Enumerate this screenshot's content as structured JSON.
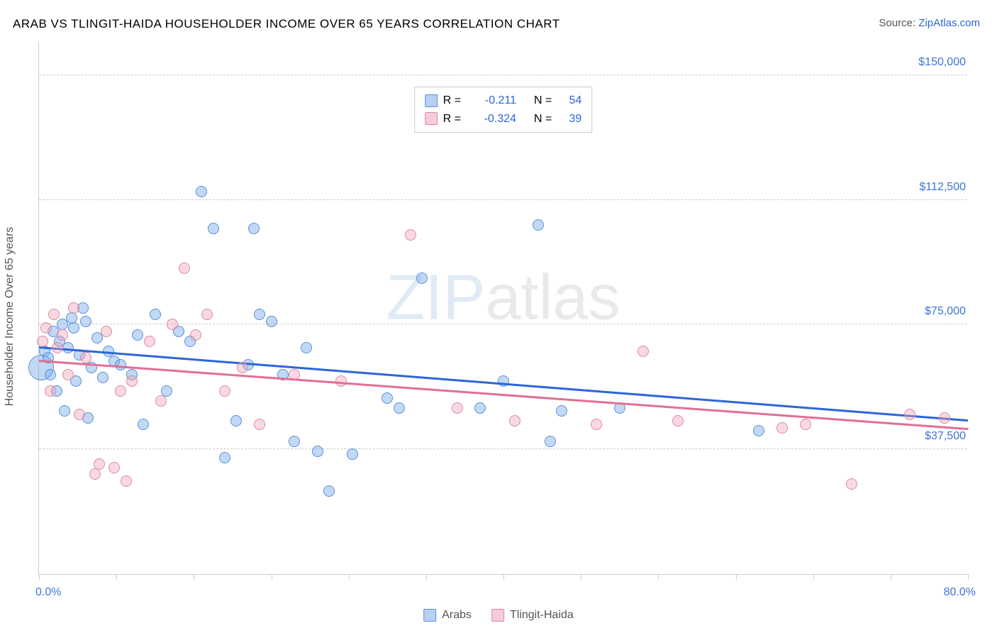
{
  "title": "ARAB VS TLINGIT-HAIDA HOUSEHOLDER INCOME OVER 65 YEARS CORRELATION CHART",
  "source_prefix": "Source: ",
  "source_link": "ZipAtlas.com",
  "y_axis_label": "Householder Income Over 65 years",
  "watermark_a": "ZIP",
  "watermark_b": "atlas",
  "chart": {
    "type": "scatter",
    "xlim": [
      0,
      80
    ],
    "ylim": [
      0,
      160000
    ],
    "x_ticks": [
      0,
      6.67,
      13.33,
      20,
      26.67,
      33.33,
      40,
      46.67,
      53.33,
      60,
      66.67,
      73.33,
      80
    ],
    "y_grid": [
      37500,
      75000,
      112500,
      150000
    ],
    "y_tick_labels": [
      "$37,500",
      "$75,000",
      "$112,500",
      "$150,000"
    ],
    "x_min_label": "0.0%",
    "x_max_label": "80.0%",
    "background_color": "#ffffff",
    "grid_color": "#cccccc",
    "marker_radius": 8,
    "marker_radius_big": 18,
    "series": [
      {
        "name": "Arabs",
        "color": "#78aaeb",
        "border": "#5a8fd6",
        "R": "-0.211",
        "N": "54",
        "trend": {
          "x1": 0,
          "y1": 68000,
          "x2": 80,
          "y2": 46000,
          "color": "#2b66d9"
        },
        "points": [
          [
            0.2,
            62000,
            18
          ],
          [
            0.5,
            67000
          ],
          [
            0.8,
            65000
          ],
          [
            1.0,
            60000
          ],
          [
            1.2,
            73000
          ],
          [
            1.5,
            55000
          ],
          [
            1.8,
            70000
          ],
          [
            2.0,
            75000
          ],
          [
            2.2,
            49000
          ],
          [
            2.5,
            68000
          ],
          [
            2.8,
            77000
          ],
          [
            3.0,
            74000
          ],
          [
            3.2,
            58000
          ],
          [
            3.5,
            66000
          ],
          [
            3.8,
            80000
          ],
          [
            4.0,
            76000
          ],
          [
            4.2,
            47000
          ],
          [
            4.5,
            62000
          ],
          [
            5.0,
            71000
          ],
          [
            5.5,
            59000
          ],
          [
            6.0,
            67000
          ],
          [
            6.5,
            64000
          ],
          [
            7.0,
            63000
          ],
          [
            8.0,
            60000
          ],
          [
            8.5,
            72000
          ],
          [
            9.0,
            45000
          ],
          [
            10.0,
            78000
          ],
          [
            11.0,
            55000
          ],
          [
            12.0,
            73000
          ],
          [
            13.0,
            70000
          ],
          [
            14.0,
            115000
          ],
          [
            15.0,
            104000
          ],
          [
            16.0,
            35000
          ],
          [
            17.0,
            46000
          ],
          [
            18.0,
            63000
          ],
          [
            18.5,
            104000
          ],
          [
            19.0,
            78000
          ],
          [
            20.0,
            76000
          ],
          [
            21.0,
            60000
          ],
          [
            22.0,
            40000
          ],
          [
            23.0,
            68000
          ],
          [
            24.0,
            37000
          ],
          [
            25.0,
            25000
          ],
          [
            27.0,
            36000
          ],
          [
            30.0,
            53000
          ],
          [
            31.0,
            50000
          ],
          [
            33.0,
            89000
          ],
          [
            38.0,
            50000
          ],
          [
            40.0,
            58000
          ],
          [
            43.0,
            105000
          ],
          [
            44.0,
            40000
          ],
          [
            45.0,
            49000
          ],
          [
            50.0,
            50000
          ],
          [
            62.0,
            43000
          ]
        ]
      },
      {
        "name": "Tlingit-Haida",
        "color": "#f0a0b4",
        "border": "#d98aa0",
        "R": "-0.324",
        "N": "39",
        "trend": {
          "x1": 0,
          "y1": 64000,
          "x2": 80,
          "y2": 43500,
          "color": "#e16f94"
        },
        "points": [
          [
            0.3,
            70000
          ],
          [
            0.6,
            74000
          ],
          [
            1.0,
            55000
          ],
          [
            1.3,
            78000
          ],
          [
            1.6,
            68000
          ],
          [
            2.0,
            72000
          ],
          [
            2.5,
            60000
          ],
          [
            3.0,
            80000
          ],
          [
            3.5,
            48000
          ],
          [
            4.0,
            65000
          ],
          [
            4.8,
            30000
          ],
          [
            5.2,
            33000
          ],
          [
            5.8,
            73000
          ],
          [
            6.5,
            32000
          ],
          [
            7.0,
            55000
          ],
          [
            7.5,
            28000
          ],
          [
            8.0,
            58000
          ],
          [
            9.5,
            70000
          ],
          [
            10.5,
            52000
          ],
          [
            11.5,
            75000
          ],
          [
            12.5,
            92000
          ],
          [
            13.5,
            72000
          ],
          [
            14.5,
            78000
          ],
          [
            16.0,
            55000
          ],
          [
            17.5,
            62000
          ],
          [
            19.0,
            45000
          ],
          [
            22.0,
            60000
          ],
          [
            26.0,
            58000
          ],
          [
            32.0,
            102000
          ],
          [
            36.0,
            50000
          ],
          [
            41.0,
            46000
          ],
          [
            48.0,
            45000
          ],
          [
            52.0,
            67000
          ],
          [
            55.0,
            46000
          ],
          [
            64.0,
            44000
          ],
          [
            66.0,
            45000
          ],
          [
            70.0,
            27000
          ],
          [
            75.0,
            48000
          ],
          [
            78.0,
            47000
          ]
        ]
      }
    ]
  },
  "legend": {
    "series1": "Arabs",
    "series2": "Tlingit-Haida",
    "R_label": "R =",
    "N_label": "N ="
  }
}
